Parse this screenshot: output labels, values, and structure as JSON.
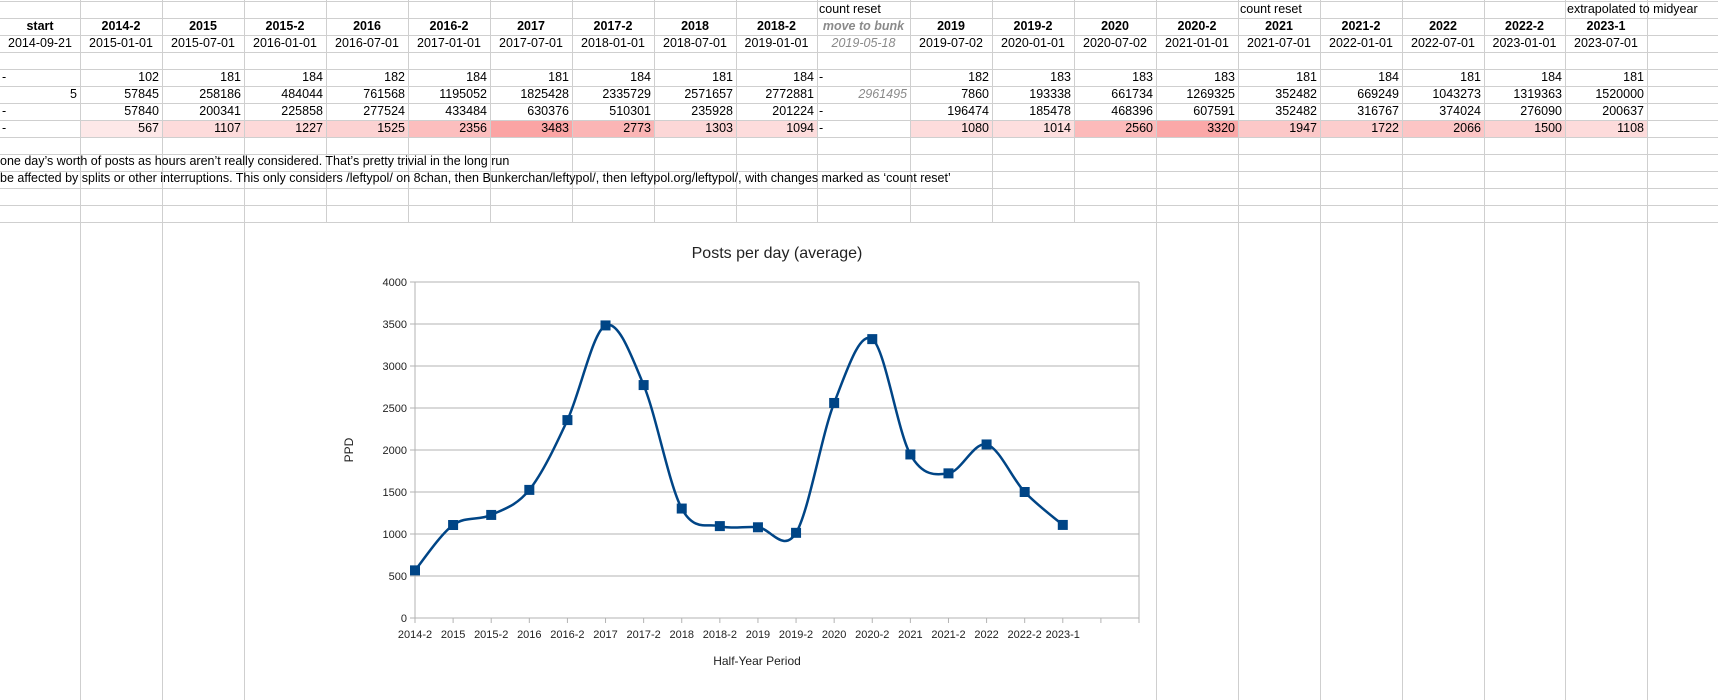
{
  "header_notes": {
    "count_reset_1": "count reset",
    "count_reset_2": "count reset",
    "extrapolated": "extrapolated to midyear"
  },
  "columns": [
    {
      "label": "start",
      "date": "2014-09-21"
    },
    {
      "label": "2014-2",
      "date": "2015-01-01"
    },
    {
      "label": "2015",
      "date": "2015-07-01"
    },
    {
      "label": "2015-2",
      "date": "2016-01-01"
    },
    {
      "label": "2016",
      "date": "2016-07-01"
    },
    {
      "label": "2016-2",
      "date": "2017-01-01"
    },
    {
      "label": "2017",
      "date": "2017-07-01"
    },
    {
      "label": "2017-2",
      "date": "2018-01-01"
    },
    {
      "label": "2018",
      "date": "2018-07-01"
    },
    {
      "label": "2018-2",
      "date": "2019-01-01"
    },
    {
      "label": "move to bunk",
      "date": "2019-05-18"
    },
    {
      "label": "2019",
      "date": "2019-07-02"
    },
    {
      "label": "2019-2",
      "date": "2020-01-01"
    },
    {
      "label": "2020",
      "date": "2020-07-02"
    },
    {
      "label": "2020-2",
      "date": "2021-01-01"
    },
    {
      "label": "2021",
      "date": "2021-07-01"
    },
    {
      "label": "2021-2",
      "date": "2022-01-01"
    },
    {
      "label": "2022",
      "date": "2022-07-01"
    },
    {
      "label": "2022-2",
      "date": "2023-01-01"
    },
    {
      "label": "2023-1",
      "date": "2023-07-01"
    }
  ],
  "rows": {
    "days": [
      "-",
      "102",
      "181",
      "184",
      "182",
      "184",
      "181",
      "184",
      "181",
      "184",
      "-",
      "182",
      "183",
      "183",
      "183",
      "181",
      "184",
      "181",
      "184",
      "181"
    ],
    "post_count": [
      "5",
      "57845",
      "258186",
      "484044",
      "761568",
      "1195052",
      "1825428",
      "2335729",
      "2571657",
      "2772881",
      "2961495",
      "7860",
      "193338",
      "661734",
      "1269325",
      "352482",
      "669249",
      "1043273",
      "1319363",
      "1520000"
    ],
    "posts_in_period": [
      "-",
      "57840",
      "200341",
      "225858",
      "277524",
      "433484",
      "630376",
      "510301",
      "235928",
      "201224",
      "-",
      "196474",
      "185478",
      "468396",
      "607591",
      "352482",
      "316767",
      "374024",
      "276090",
      "200637"
    ],
    "ppd": [
      "-",
      "567",
      "1107",
      "1227",
      "1525",
      "2356",
      "3483",
      "2773",
      "1303",
      "1094",
      "-",
      "1080",
      "1014",
      "2560",
      "3320",
      "1947",
      "1722",
      "2066",
      "1500",
      "1108"
    ]
  },
  "notes": {
    "line1": "one day’s worth of posts as hours aren’t really considered. That’s pretty trivial in the long run",
    "line2": "be affected by splits or other interruptions. This only considers /leftypol/ on 8chan, then Bunkerchan/leftypol/, then leftypol.org/leftypol/, with changes marked as ‘count reset’"
  },
  "colors": {
    "heat_low": "#fde8e8",
    "heat_high": "#fba4a4",
    "series": "#004586",
    "grid": "#b3b3b3"
  },
  "chart_data": {
    "type": "line",
    "title": "Posts per day (average)",
    "xlabel": "Half-Year Period",
    "ylabel": "PPD",
    "categories": [
      "2014-2",
      "2015",
      "2015-2",
      "2016",
      "2016-2",
      "2017",
      "2017-2",
      "2018",
      "2018-2",
      "2019",
      "2019-2",
      "2020",
      "2020-2",
      "2021",
      "2021-2",
      "2022",
      "2022-2",
      "2023-1"
    ],
    "series": [
      {
        "values": [
          567,
          1107,
          1227,
          1525,
          2356,
          3483,
          2773,
          1303,
          1094,
          1080,
          1014,
          2560,
          3320,
          1947,
          1722,
          2066,
          1500,
          1108
        ]
      }
    ],
    "ylim": [
      0,
      4000
    ],
    "yticks": [
      "0",
      "500",
      "1000",
      "1500",
      "2000",
      "2500",
      "3000",
      "3500",
      "4000"
    ],
    "smooth": true,
    "marker": "square",
    "grid": true,
    "legend": "none"
  }
}
